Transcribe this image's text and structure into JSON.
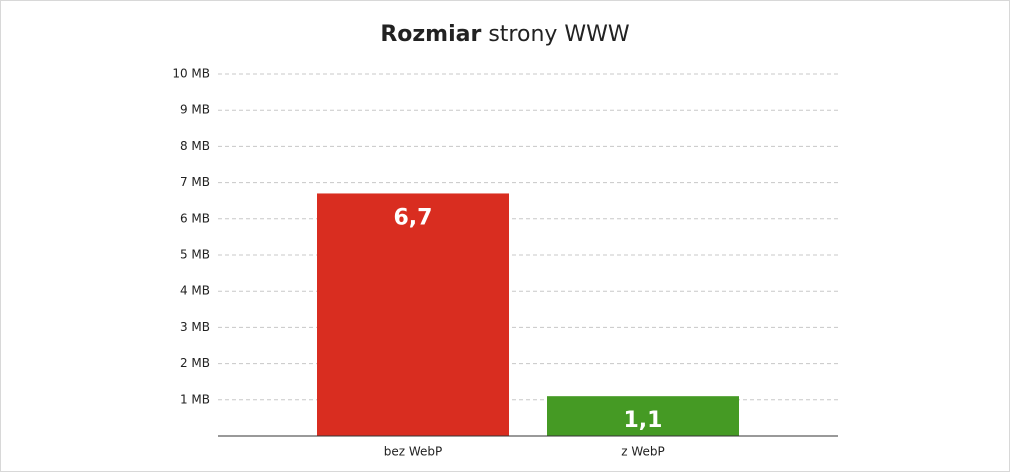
{
  "chart_data": {
    "type": "bar",
    "title_parts": [
      "Rozmiar",
      "strony WWW"
    ],
    "categories": [
      "bez WebP",
      "z WebP"
    ],
    "values": [
      6.7,
      1.1
    ],
    "value_labels": [
      "6,7",
      "1,1"
    ],
    "colors": [
      "#d92d20",
      "#459a24"
    ],
    "ylim": [
      0,
      10
    ],
    "yticks": [
      {
        "value": 1,
        "label": "1 MB"
      },
      {
        "value": 2,
        "label": "2 MB"
      },
      {
        "value": 3,
        "label": "3 MB"
      },
      {
        "value": 4,
        "label": "4 MB"
      },
      {
        "value": 5,
        "label": "5 MB"
      },
      {
        "value": 6,
        "label": "6 MB"
      },
      {
        "value": 7,
        "label": "7 MB"
      },
      {
        "value": 8,
        "label": "8 MB"
      },
      {
        "value": 9,
        "label": "9 MB"
      },
      {
        "value": 10,
        "label": "10 MB"
      }
    ],
    "grid": true
  }
}
